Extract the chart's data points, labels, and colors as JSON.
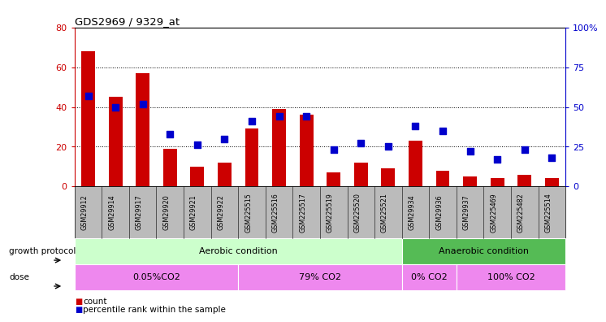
{
  "title": "GDS2969 / 9329_at",
  "samples": [
    "GSM29912",
    "GSM29914",
    "GSM29917",
    "GSM29920",
    "GSM29921",
    "GSM29922",
    "GSM225515",
    "GSM225516",
    "GSM225517",
    "GSM225519",
    "GSM225520",
    "GSM225521",
    "GSM29934",
    "GSM29936",
    "GSM29937",
    "GSM225469",
    "GSM225482",
    "GSM225514"
  ],
  "count": [
    68,
    45,
    57,
    19,
    10,
    12,
    29,
    39,
    36,
    7,
    12,
    9,
    23,
    8,
    5,
    4,
    6,
    4
  ],
  "percentile": [
    57,
    50,
    52,
    33,
    26,
    30,
    41,
    44,
    44,
    23,
    27,
    25,
    38,
    35,
    22,
    17,
    23,
    18
  ],
  "ylim_left": [
    0,
    80
  ],
  "ylim_right": [
    0,
    100
  ],
  "yticks_left": [
    0,
    20,
    40,
    60,
    80
  ],
  "yticks_right": [
    0,
    25,
    50,
    75,
    100
  ],
  "bar_color": "#cc0000",
  "dot_color": "#0000cc",
  "bar_color_left_spine": "#cc0000",
  "right_spine_color": "#0000cc",
  "aerobic_color_light": "#ccffcc",
  "aerobic_color_dark": "#55bb55",
  "dose_color": "#ee88ee",
  "xaxis_bg": "#bbbbbb",
  "growth_protocol_label": "growth protocol",
  "dose_label": "dose",
  "aerobic_label": "Aerobic condition",
  "anaerobic_label": "Anaerobic condition",
  "dose_groups": [
    {
      "label": "0.05%CO2",
      "start": 0,
      "end": 6
    },
    {
      "label": "79% CO2",
      "start": 6,
      "end": 12
    },
    {
      "label": "0% CO2",
      "start": 12,
      "end": 14
    },
    {
      "label": "100% CO2",
      "start": 14,
      "end": 18
    }
  ],
  "legend_count_label": "count",
  "legend_percentile_label": "percentile rank within the sample"
}
